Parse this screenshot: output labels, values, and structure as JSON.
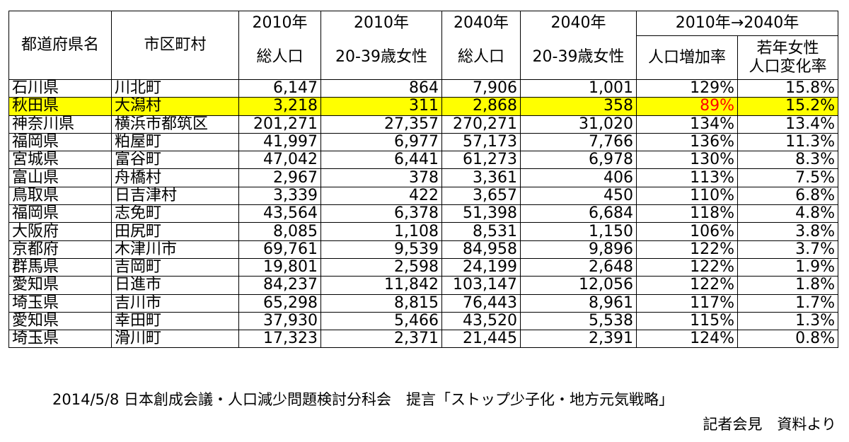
{
  "headers": {
    "pref": "都道府県名",
    "city": "市区町村",
    "pop2010_year": "2010年",
    "pop2010_label": "総人口",
    "women2010_year": "2010年",
    "women2010_label": "20-39歳女性",
    "pop2040_year": "2040年",
    "pop2040_label": "総人口",
    "women2040_year": "2040年",
    "women2040_label": "20-39歳女性",
    "change_span": "2010年→2040年",
    "growth": "人口増加率",
    "women_change_line1": "若年女性",
    "women_change_line2": "人口変化率"
  },
  "rows": [
    {
      "pref": "石川県",
      "city": "川北町",
      "pop2010": "6,147",
      "w2010": "864",
      "pop2040": "7,906",
      "w2040": "1,001",
      "growth": "129%",
      "wchange": "15.8%",
      "highlight": false
    },
    {
      "pref": "秋田県",
      "city": "大潟村",
      "pop2010": "3,218",
      "w2010": "311",
      "pop2040": "2,868",
      "w2040": "358",
      "growth": "89%",
      "wchange": "15.2%",
      "highlight": true
    },
    {
      "pref": "神奈川県",
      "city": "横浜市都筑区",
      "pop2010": "201,271",
      "w2010": "27,357",
      "pop2040": "270,271",
      "w2040": "31,020",
      "growth": "134%",
      "wchange": "13.4%",
      "highlight": false
    },
    {
      "pref": "福岡県",
      "city": "粕屋町",
      "pop2010": "41,997",
      "w2010": "6,977",
      "pop2040": "57,173",
      "w2040": "7,766",
      "growth": "136%",
      "wchange": "11.3%",
      "highlight": false
    },
    {
      "pref": "宮城県",
      "city": "富谷町",
      "pop2010": "47,042",
      "w2010": "6,441",
      "pop2040": "61,273",
      "w2040": "6,978",
      "growth": "130%",
      "wchange": "8.3%",
      "highlight": false
    },
    {
      "pref": "富山県",
      "city": "舟橋村",
      "pop2010": "2,967",
      "w2010": "378",
      "pop2040": "3,361",
      "w2040": "406",
      "growth": "113%",
      "wchange": "7.5%",
      "highlight": false
    },
    {
      "pref": "鳥取県",
      "city": "日吉津村",
      "pop2010": "3,339",
      "w2010": "422",
      "pop2040": "3,657",
      "w2040": "450",
      "growth": "110%",
      "wchange": "6.8%",
      "highlight": false
    },
    {
      "pref": "福岡県",
      "city": "志免町",
      "pop2010": "43,564",
      "w2010": "6,378",
      "pop2040": "51,398",
      "w2040": "6,684",
      "growth": "118%",
      "wchange": "4.8%",
      "highlight": false
    },
    {
      "pref": "大阪府",
      "city": "田尻町",
      "pop2010": "8,085",
      "w2010": "1,108",
      "pop2040": "8,531",
      "w2040": "1,150",
      "growth": "106%",
      "wchange": "3.8%",
      "highlight": false
    },
    {
      "pref": "京都府",
      "city": "木津川市",
      "pop2010": "69,761",
      "w2010": "9,539",
      "pop2040": "84,958",
      "w2040": "9,896",
      "growth": "122%",
      "wchange": "3.7%",
      "highlight": false
    },
    {
      "pref": "群馬県",
      "city": "吉岡町",
      "pop2010": "19,801",
      "w2010": "2,598",
      "pop2040": "24,199",
      "w2040": "2,648",
      "growth": "122%",
      "wchange": "1.9%",
      "highlight": false
    },
    {
      "pref": "愛知県",
      "city": "日進市",
      "pop2010": "84,237",
      "w2010": "11,842",
      "pop2040": "103,147",
      "w2040": "12,056",
      "growth": "122%",
      "wchange": "1.8%",
      "highlight": false
    },
    {
      "pref": "埼玉県",
      "city": "吉川市",
      "pop2010": "65,298",
      "w2010": "8,815",
      "pop2040": "76,443",
      "w2040": "8,961",
      "growth": "117%",
      "wchange": "1.7%",
      "highlight": false
    },
    {
      "pref": "愛知県",
      "city": "幸田町",
      "pop2010": "37,930",
      "w2010": "5,466",
      "pop2040": "43,520",
      "w2040": "5,538",
      "growth": "115%",
      "wchange": "1.3%",
      "highlight": false
    },
    {
      "pref": "埼玉県",
      "city": "滑川町",
      "pop2010": "17,323",
      "w2010": "2,371",
      "pop2040": "21,445",
      "w2040": "2,391",
      "growth": "124%",
      "wchange": "0.8%",
      "highlight": false
    }
  ],
  "footer": {
    "source_line": "2014/5/8 日本創成会議・人口減少問題検討分科会　提言「ストップ少子化・地方元気戦略」",
    "source_line2": "記者会見　資料より"
  },
  "colors": {
    "highlight_bg": "#ffff00",
    "negative_text": "#ff0000",
    "border": "#000000"
  }
}
